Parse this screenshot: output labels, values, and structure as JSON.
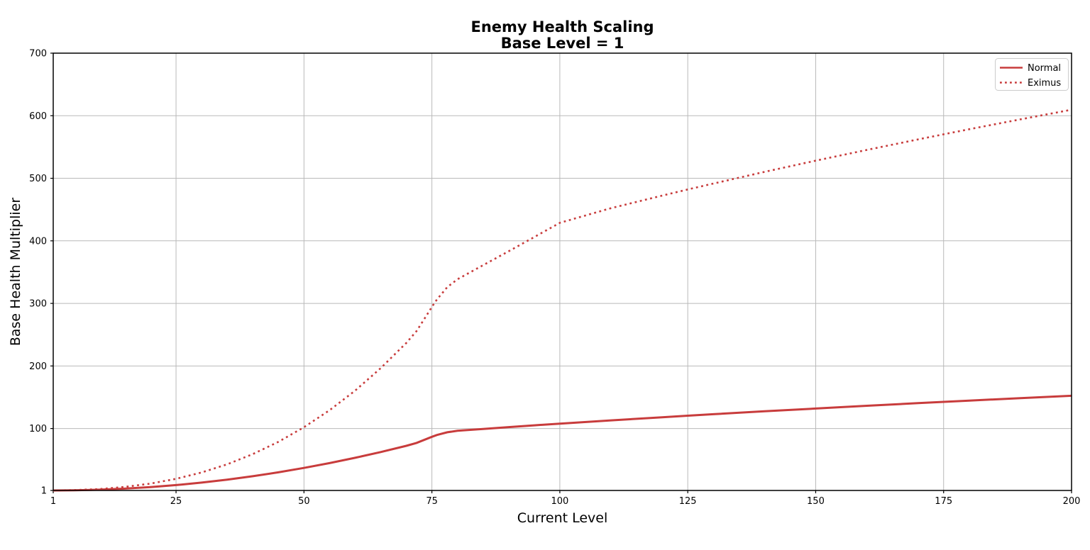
{
  "figure": {
    "title_line1": "Enemy Health Scaling",
    "title_line2": "Base Level = 1",
    "xlabel": "Current Level",
    "ylabel": "Base Health Multiplier"
  },
  "colors": {
    "line": "#c83c3c",
    "grid": "#b9b9b9",
    "spine": "#000000",
    "background": "#ffffff"
  },
  "chart_data": {
    "type": "line",
    "title": "Enemy Health Scaling\nBase Level = 1",
    "xlabel": "Current Level",
    "ylabel": "Base Health Multiplier",
    "xlim": [
      1,
      200
    ],
    "ylim": [
      1,
      700
    ],
    "xticks": [
      1,
      25,
      50,
      75,
      100,
      125,
      150,
      175,
      200
    ],
    "yticks": [
      1,
      100,
      200,
      300,
      400,
      500,
      600,
      700
    ],
    "grid": true,
    "legend_position": "upper right",
    "x": [
      1,
      5,
      10,
      15,
      20,
      25,
      30,
      35,
      40,
      45,
      50,
      55,
      60,
      65,
      70,
      72,
      74,
      75,
      76,
      78,
      80,
      85,
      90,
      95,
      100,
      110,
      120,
      125,
      130,
      140,
      150,
      160,
      170,
      175,
      180,
      190,
      200
    ],
    "series": [
      {
        "name": "Normal",
        "style": "solid",
        "values": [
          1,
          1.24,
          2.22,
          3.94,
          6.42,
          9.64,
          13.62,
          18.34,
          23.82,
          30.04,
          37.02,
          44.74,
          53.22,
          62.44,
          72.42,
          77.03,
          83.48,
          86.73,
          89.66,
          94.05,
          96.35,
          99.38,
          102.26,
          105.07,
          107.8,
          113.06,
          118.08,
          120.52,
          122.91,
          127.54,
          132.02,
          136.34,
          140.53,
          142.58,
          144.6,
          148.56,
          152.41
        ]
      },
      {
        "name": "Eximus",
        "style": "dotted",
        "values": [
          1,
          1.57,
          3.31,
          6.64,
          11.96,
          19.57,
          29.78,
          42.86,
          59.09,
          78.73,
          102.05,
          129.3,
          160.66,
          196.5,
          236.9,
          255.8,
          281.3,
          294.4,
          306.4,
          326.0,
          338.6,
          361.0,
          383.4,
          406.0,
          428.8,
          452.2,
          472.3,
          482.1,
          491.6,
          510.2,
          528.1,
          545.4,
          562.1,
          570.3,
          578.4,
          594.2,
          609.6
        ]
      }
    ]
  }
}
